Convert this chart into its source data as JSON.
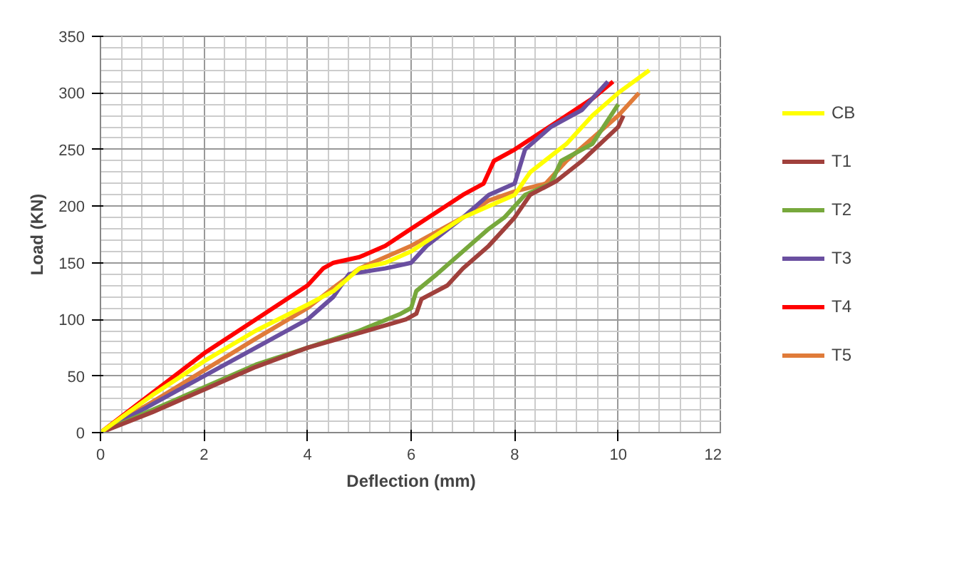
{
  "chart_data": {
    "type": "line",
    "xlabel": "Deflection (mm)",
    "ylabel": "Load (KN)",
    "xlim": [
      0,
      12
    ],
    "ylim": [
      0,
      350
    ],
    "xticks": [
      0,
      2,
      4,
      6,
      8,
      10,
      12
    ],
    "yticks": [
      0,
      50,
      100,
      150,
      200,
      250,
      300,
      350
    ],
    "grid": true,
    "legend": "right",
    "marker": "none",
    "line_style": "solid",
    "series": [
      {
        "name": "CB",
        "color": "#ffff00",
        "x": [
          0,
          1,
          2,
          3,
          4,
          4.5,
          5,
          5.5,
          6,
          6.5,
          7,
          7.5,
          8,
          8.3,
          9,
          9.5,
          10,
          10.6
        ],
        "values": [
          0,
          33,
          63,
          90,
          113,
          125,
          145,
          150,
          160,
          175,
          190,
          200,
          210,
          230,
          255,
          280,
          300,
          320
        ]
      },
      {
        "name": "T1",
        "color": "#a0403c",
        "x": [
          0,
          1,
          2,
          3,
          4,
          5,
          5.9,
          6.1,
          6.2,
          6.7,
          7,
          7.5,
          8,
          8.3,
          8.8,
          9.3,
          10,
          10.1
        ],
        "values": [
          0,
          18,
          38,
          58,
          75,
          88,
          100,
          105,
          118,
          130,
          145,
          165,
          190,
          210,
          222,
          240,
          270,
          280
        ]
      },
      {
        "name": "T2",
        "color": "#77a83c",
        "x": [
          0,
          1,
          2,
          3,
          4,
          5,
          5.8,
          6,
          6.1,
          6.5,
          7,
          7.5,
          7.8,
          8,
          8.2,
          8.7,
          8.9,
          9.5,
          10
        ],
        "values": [
          0,
          20,
          40,
          60,
          75,
          90,
          105,
          110,
          125,
          140,
          160,
          180,
          190,
          200,
          210,
          220,
          240,
          255,
          290
        ]
      },
      {
        "name": "T3",
        "color": "#6a4fa0",
        "x": [
          0,
          1,
          2,
          3,
          4,
          4.5,
          4.8,
          5.5,
          6,
          6.3,
          7,
          7.5,
          8,
          8.2,
          8.7,
          9.3,
          9.8
        ],
        "values": [
          0,
          25,
          50,
          75,
          100,
          120,
          140,
          145,
          150,
          165,
          190,
          210,
          220,
          250,
          270,
          285,
          310
        ]
      },
      {
        "name": "T4",
        "color": "#ff0000",
        "x": [
          0,
          1,
          2,
          3,
          4,
          4.3,
          4.5,
          5,
          5.5,
          6,
          6.5,
          7,
          7.4,
          7.6,
          8,
          8.5,
          9,
          9.5,
          9.9
        ],
        "values": [
          0,
          35,
          70,
          100,
          130,
          145,
          150,
          155,
          165,
          180,
          195,
          210,
          220,
          240,
          250,
          265,
          280,
          295,
          310
        ]
      },
      {
        "name": "T5",
        "color": "#e07b39",
        "x": [
          0,
          1,
          2,
          3,
          4,
          4.5,
          5,
          6,
          7,
          7.5,
          8,
          8.6,
          9,
          9.5,
          10,
          10.4
        ],
        "values": [
          0,
          27,
          55,
          83,
          110,
          128,
          145,
          165,
          190,
          205,
          213,
          220,
          240,
          260,
          280,
          300
        ]
      }
    ]
  }
}
